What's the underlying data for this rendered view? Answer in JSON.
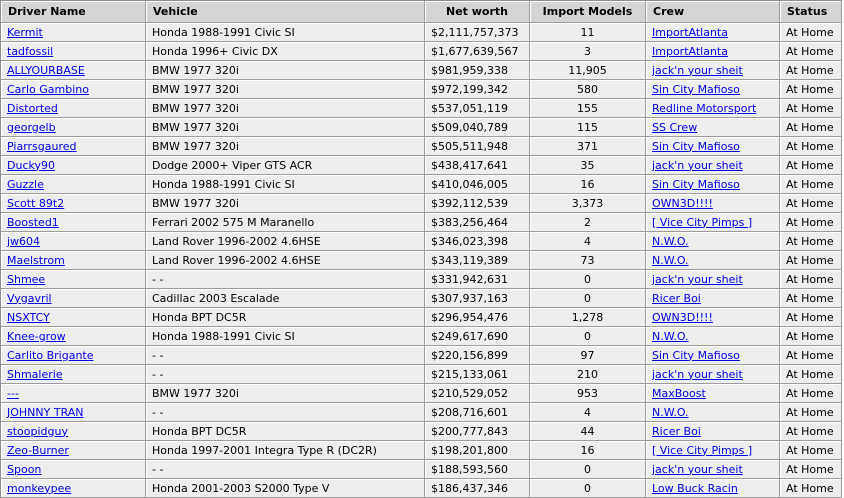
{
  "colors": {
    "link": "#0000e6",
    "header_bg": "#d4d4d4",
    "row_bg": "#eeeeee",
    "border_dark": "#9c9c9c",
    "border_light": "#ffffff"
  },
  "table": {
    "columns": [
      {
        "key": "driver",
        "label": "Driver Name",
        "link": true
      },
      {
        "key": "vehicle",
        "label": "Vehicle",
        "link": false
      },
      {
        "key": "networth",
        "label": "Net worth",
        "link": false
      },
      {
        "key": "imports",
        "label": "Import Models",
        "link": false
      },
      {
        "key": "crew",
        "label": "Crew",
        "link": true
      },
      {
        "key": "status",
        "label": "Status",
        "link": false
      }
    ],
    "rows": [
      {
        "driver": "Kermit",
        "vehicle": "Honda 1988-1991 Civic SI",
        "networth": "$2,111,757,373",
        "imports": "11",
        "crew": "ImportAtlanta",
        "status": "At Home"
      },
      {
        "driver": "tadfossil",
        "vehicle": "Honda 1996+ Civic DX",
        "networth": "$1,677,639,567",
        "imports": "3",
        "crew": "ImportAtlanta",
        "status": "At Home"
      },
      {
        "driver": "ALLYOURBASE",
        "vehicle": "BMW 1977 320i",
        "networth": "$981,959,338",
        "imports": "11,905",
        "crew": "jack'n your sheit",
        "status": "At Home"
      },
      {
        "driver": "Carlo Gambino",
        "vehicle": "BMW 1977 320i",
        "networth": "$972,199,342",
        "imports": "580",
        "crew": "Sin City Mafioso",
        "status": "At Home"
      },
      {
        "driver": "Distorted",
        "vehicle": "BMW 1977 320i",
        "networth": "$537,051,119",
        "imports": "155",
        "crew": "Redline Motorsport",
        "status": "At Home"
      },
      {
        "driver": "georgelb",
        "vehicle": "BMW 1977 320i",
        "networth": "$509,040,789",
        "imports": "115",
        "crew": "SS Crew",
        "status": "At Home"
      },
      {
        "driver": "Piarrsgaured",
        "vehicle": "BMW 1977 320i",
        "networth": "$505,511,948",
        "imports": "371",
        "crew": "Sin City Mafioso",
        "status": "At Home"
      },
      {
        "driver": "Ducky90",
        "vehicle": "Dodge 2000+ Viper GTS ACR",
        "networth": "$438,417,641",
        "imports": "35",
        "crew": "jack'n your sheit",
        "status": "At Home"
      },
      {
        "driver": "Guzzle",
        "vehicle": "Honda 1988-1991 Civic SI",
        "networth": "$410,046,005",
        "imports": "16",
        "crew": "Sin City Mafioso",
        "status": "At Home"
      },
      {
        "driver": "Scott 89t2",
        "vehicle": "BMW 1977 320i",
        "networth": "$392,112,539",
        "imports": "3,373",
        "crew": "OWN3D!!!!",
        "status": "At Home"
      },
      {
        "driver": "Boosted1",
        "vehicle": "Ferrari 2002 575 M Maranello",
        "networth": "$383,256,464",
        "imports": "2",
        "crew": "[ Vice City Pimps ]",
        "status": "At Home"
      },
      {
        "driver": "jw604",
        "vehicle": "Land Rover 1996-2002 4.6HSE",
        "networth": "$346,023,398",
        "imports": "4",
        "crew": "N.W.O.",
        "status": "At Home"
      },
      {
        "driver": "Maelstrom",
        "vehicle": "Land Rover 1996-2002 4.6HSE",
        "networth": "$343,119,389",
        "imports": "73",
        "crew": "N.W.O.",
        "status": "At Home"
      },
      {
        "driver": "Shmee",
        "vehicle": "- -",
        "networth": "$331,942,631",
        "imports": "0",
        "crew": "jack'n your sheit",
        "status": "At Home"
      },
      {
        "driver": "Vygavril",
        "vehicle": "Cadillac 2003 Escalade",
        "networth": "$307,937,163",
        "imports": "0",
        "crew": "Ricer Boi",
        "status": "At Home"
      },
      {
        "driver": "NSXTCY",
        "vehicle": "Honda BPT DC5R",
        "networth": "$296,954,476",
        "imports": "1,278",
        "crew": "OWN3D!!!!",
        "status": "At Home"
      },
      {
        "driver": "Knee-grow",
        "vehicle": "Honda 1988-1991 Civic SI",
        "networth": "$249,617,690",
        "imports": "0",
        "crew": "N.W.O.",
        "status": "At Home"
      },
      {
        "driver": "Carlito Brigante",
        "vehicle": "- -",
        "networth": "$220,156,899",
        "imports": "97",
        "crew": "Sin City Mafioso",
        "status": "At Home"
      },
      {
        "driver": "Shmalerie",
        "vehicle": "- -",
        "networth": "$215,133,061",
        "imports": "210",
        "crew": "jack'n your sheit",
        "status": "At Home"
      },
      {
        "driver": "---",
        "vehicle": "BMW 1977 320i",
        "networth": "$210,529,052",
        "imports": "953",
        "crew": "MaxBoost",
        "status": "At Home"
      },
      {
        "driver": "JOHNNY TRAN",
        "vehicle": "- -",
        "networth": "$208,716,601",
        "imports": "4",
        "crew": "N.W.O.",
        "status": "At Home"
      },
      {
        "driver": "stoopidguy",
        "vehicle": "Honda BPT DC5R",
        "networth": "$200,777,843",
        "imports": "44",
        "crew": "Ricer Boi",
        "status": "At Home"
      },
      {
        "driver": "Zeo-Burner",
        "vehicle": "Honda 1997-2001 Integra Type R (DC2R)",
        "networth": "$198,201,800",
        "imports": "16",
        "crew": "[ Vice City Pimps ]",
        "status": "At Home"
      },
      {
        "driver": "Spoon",
        "vehicle": "- -",
        "networth": "$188,593,560",
        "imports": "0",
        "crew": "jack'n your sheit",
        "status": "At Home"
      },
      {
        "driver": "monkeypee",
        "vehicle": "Honda 2001-2003 S2000 Type V",
        "networth": "$186,437,346",
        "imports": "0",
        "crew": "Low Buck Racin",
        "status": "At Home"
      }
    ]
  }
}
